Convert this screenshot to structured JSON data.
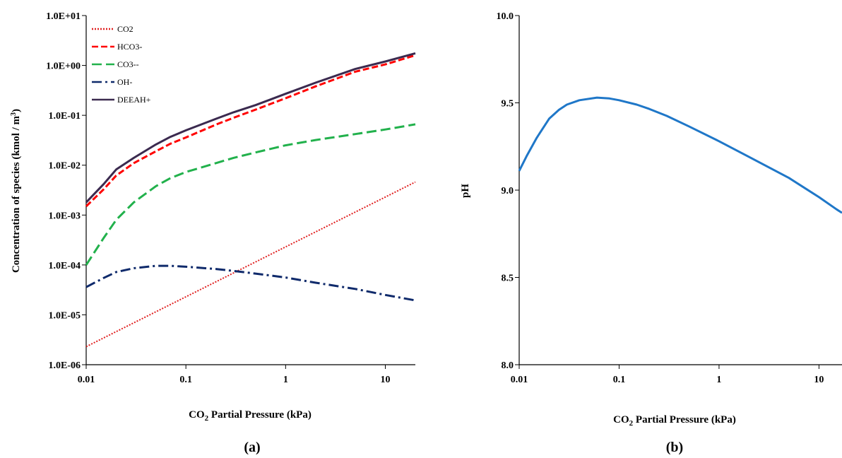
{
  "chart_data": [
    {
      "panel_label": "(a)",
      "type": "line",
      "xscale": "log",
      "yscale": "log",
      "xlim": [
        0.01,
        20
      ],
      "ylim": [
        1e-06,
        10
      ],
      "grid": false,
      "legend_position": "top-left",
      "xlabel": "CO2 Partial Pressure (kPa)",
      "xlabel_main": "CO",
      "xlabel_sub": "2",
      "xlabel_rest": " Partial Pressure (kPa)",
      "ylabel": "Concentration of species (kmol / m3)",
      "ylabel_main": "Concentration of species (kmol / m",
      "ylabel_sup": "3",
      "ylabel_rest": ")",
      "x_ticks": [
        0.01,
        0.1,
        1,
        10
      ],
      "x_tick_labels": [
        "0.01",
        "0.1",
        "1",
        "10"
      ],
      "y_ticks": [
        1e-06,
        1e-05,
        0.0001,
        0.001,
        0.01,
        0.1,
        1,
        10
      ],
      "y_tick_labels": [
        "1.0E-06",
        "1.0E-05",
        "1.0E-04",
        "1.0E-03",
        "1.0E-02",
        "1.0E-01",
        "1.0E+00",
        "1.0E+01"
      ],
      "series": [
        {
          "name": "CO2",
          "color": "#e02020",
          "dash": "dotted",
          "points": [
            [
              0.01,
              2.3e-06
            ],
            [
              0.02,
              4.6e-06
            ],
            [
              0.05,
              1.15e-05
            ],
            [
              0.1,
              2.3e-05
            ],
            [
              0.2,
              4.6e-05
            ],
            [
              0.5,
              0.000115
            ],
            [
              1,
              0.00023
            ],
            [
              2,
              0.00046
            ],
            [
              5,
              0.00115
            ],
            [
              10,
              0.0023
            ],
            [
              20,
              0.0046
            ]
          ]
        },
        {
          "name": "HCO3-",
          "color": "#ff0000",
          "dash": "dashed",
          "points": [
            [
              0.01,
              0.0015
            ],
            [
              0.015,
              0.0033
            ],
            [
              0.02,
              0.0062
            ],
            [
              0.03,
              0.011
            ],
            [
              0.05,
              0.019
            ],
            [
              0.07,
              0.027
            ],
            [
              0.1,
              0.036
            ],
            [
              0.2,
              0.065
            ],
            [
              0.3,
              0.089
            ],
            [
              0.5,
              0.13
            ],
            [
              1,
              0.22
            ],
            [
              2,
              0.38
            ],
            [
              5,
              0.75
            ],
            [
              10,
              1.05
            ],
            [
              20,
              1.6
            ]
          ]
        },
        {
          "name": "CO3--",
          "color": "#22b14c",
          "dash": "longdash",
          "points": [
            [
              0.01,
              0.0001
            ],
            [
              0.015,
              0.00035
            ],
            [
              0.02,
              0.0008
            ],
            [
              0.03,
              0.0018
            ],
            [
              0.05,
              0.0038
            ],
            [
              0.07,
              0.0055
            ],
            [
              0.1,
              0.0073
            ],
            [
              0.2,
              0.011
            ],
            [
              0.3,
              0.014
            ],
            [
              0.5,
              0.018
            ],
            [
              1,
              0.025
            ],
            [
              2,
              0.032
            ],
            [
              5,
              0.042
            ],
            [
              10,
              0.052
            ],
            [
              20,
              0.066
            ]
          ]
        },
        {
          "name": "OH-",
          "color": "#0f2a6b",
          "dash": "dashdot",
          "points": [
            [
              0.01,
              3.6e-05
            ],
            [
              0.015,
              5.5e-05
            ],
            [
              0.02,
              7.2e-05
            ],
            [
              0.03,
              8.6e-05
            ],
            [
              0.05,
              9.6e-05
            ],
            [
              0.07,
              9.6e-05
            ],
            [
              0.1,
              9.2e-05
            ],
            [
              0.2,
              8.3e-05
            ],
            [
              0.3,
              7.6e-05
            ],
            [
              0.5,
              6.7e-05
            ],
            [
              1,
              5.6e-05
            ],
            [
              2,
              4.4e-05
            ],
            [
              5,
              3.3e-05
            ],
            [
              10,
              2.5e-05
            ],
            [
              20,
              1.95e-05
            ]
          ]
        },
        {
          "name": "DEEAH+",
          "color": "#3b2a4f",
          "dash": "solid",
          "points": [
            [
              0.01,
              0.0018
            ],
            [
              0.015,
              0.0042
            ],
            [
              0.02,
              0.0082
            ],
            [
              0.03,
              0.014
            ],
            [
              0.05,
              0.026
            ],
            [
              0.07,
              0.037
            ],
            [
              0.1,
              0.05
            ],
            [
              0.2,
              0.085
            ],
            [
              0.3,
              0.115
            ],
            [
              0.5,
              0.16
            ],
            [
              1,
              0.27
            ],
            [
              2,
              0.45
            ],
            [
              5,
              0.85
            ],
            [
              10,
              1.2
            ],
            [
              20,
              1.75
            ]
          ]
        }
      ]
    },
    {
      "panel_label": "(b)",
      "type": "line",
      "xscale": "log",
      "yscale": "linear",
      "xlim": [
        0.01,
        17
      ],
      "ylim": [
        8.0,
        10.0
      ],
      "grid": false,
      "xlabel": "CO2 Partial Pressure (kPa)",
      "xlabel_main": "CO",
      "xlabel_sub": "2",
      "xlabel_rest": " Partial Pressure (kPa)",
      "ylabel": "pH",
      "x_ticks": [
        0.01,
        0.1,
        1,
        10
      ],
      "x_tick_labels": [
        "0.01",
        "0.1",
        "1",
        "10"
      ],
      "y_ticks": [
        8.0,
        8.5,
        9.0,
        9.5,
        10.0
      ],
      "y_tick_labels": [
        "8.0",
        "8.5",
        "9.0",
        "9.5",
        "10.0"
      ],
      "series": [
        {
          "color": "#1f77c8",
          "dash": "solid",
          "points": [
            [
              0.01,
              9.11
            ],
            [
              0.012,
              9.2
            ],
            [
              0.015,
              9.3
            ],
            [
              0.02,
              9.41
            ],
            [
              0.025,
              9.46
            ],
            [
              0.03,
              9.49
            ],
            [
              0.04,
              9.515
            ],
            [
              0.06,
              9.53
            ],
            [
              0.08,
              9.525
            ],
            [
              0.1,
              9.515
            ],
            [
              0.15,
              9.49
            ],
            [
              0.2,
              9.465
            ],
            [
              0.3,
              9.425
            ],
            [
              0.5,
              9.365
            ],
            [
              1,
              9.28
            ],
            [
              2,
              9.19
            ],
            [
              5,
              9.07
            ],
            [
              10,
              8.96
            ],
            [
              15,
              8.89
            ],
            [
              17,
              8.87
            ]
          ]
        }
      ]
    }
  ]
}
